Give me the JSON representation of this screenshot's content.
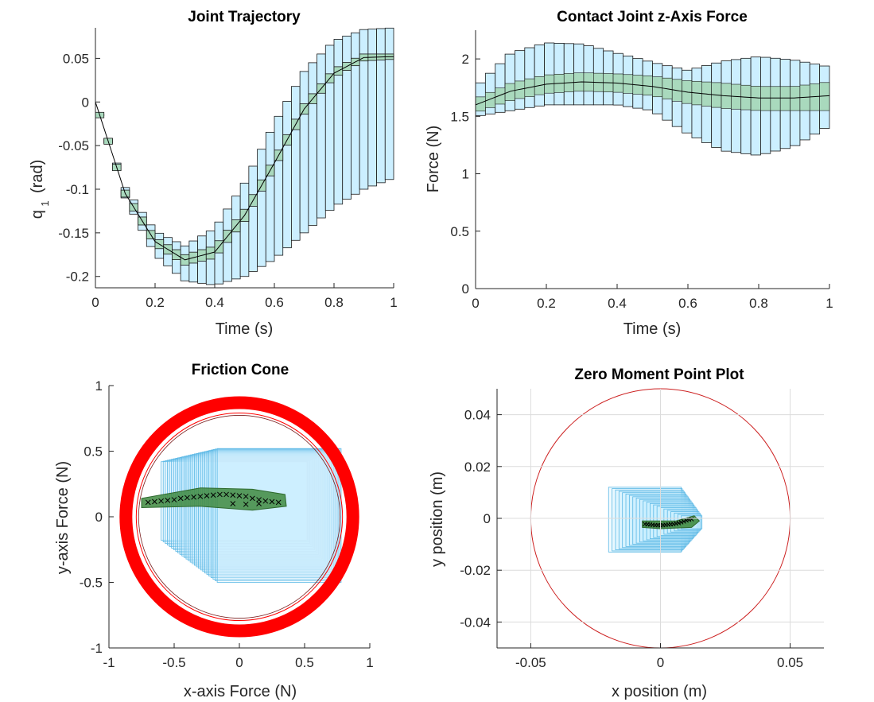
{
  "colors": {
    "bound_box": "#ccefff",
    "bound_edge": "#1a1a1a",
    "inner_box": "#a9d9bd",
    "cone_box_edge": "#5bb8e5",
    "cone_ring": "#ff0000",
    "zmp_ring": "#cc1f1f",
    "mean_fill": "#3f8a3f",
    "marker": "#000000"
  },
  "chart_data": [
    {
      "id": "joint",
      "type": "line",
      "title": "Joint Trajectory",
      "xlabel": "Time (s)",
      "ylabel": "q",
      "ylabel_sub": "1",
      "ylabel_unit": "(rad)",
      "xlim": [
        0,
        1
      ],
      "ylim": [
        -0.213,
        0.085
      ],
      "xticks": [
        0,
        0.2,
        0.4,
        0.6,
        0.8,
        1
      ],
      "xtick_labels": [
        "0",
        "0.2",
        "0.4",
        "0.6",
        "0.8",
        "1"
      ],
      "yticks": [
        -0.2,
        -0.15,
        -0.1,
        -0.05,
        0,
        0.05
      ],
      "ytick_labels": [
        "-0.2",
        "-0.15",
        "-0.1",
        "-0.05",
        "0",
        "0.05"
      ],
      "grid": false,
      "x": [
        0,
        0.1,
        0.2,
        0.3,
        0.4,
        0.5,
        0.6,
        0.7,
        0.8,
        0.9,
        1.0
      ],
      "mean": [
        0,
        -0.105,
        -0.16,
        -0.181,
        -0.172,
        -0.13,
        -0.07,
        -0.008,
        0.033,
        0.051,
        0.052
      ],
      "inner_halfwidth": [
        0.003,
        0.004,
        0.005,
        0.006,
        0.007,
        0.007,
        0.006,
        0.006,
        0.005,
        0.004,
        0.003
      ],
      "outer_halfwidth": [
        0.003,
        0.008,
        0.012,
        0.02,
        0.03,
        0.04,
        0.05,
        0.06,
        0.07,
        0.08,
        0.085
      ],
      "outer_upper": [
        0,
        -0.098,
        -0.148,
        -0.165,
        -0.145,
        -0.093,
        -0.025,
        0.035,
        0.07,
        0.083,
        0.085
      ],
      "outer_lower": [
        0,
        -0.11,
        -0.175,
        -0.205,
        -0.21,
        -0.2,
        -0.18,
        -0.15,
        -0.12,
        -0.1,
        -0.087
      ]
    },
    {
      "id": "force",
      "type": "line",
      "title": "Contact Joint z-Axis Force",
      "xlabel": "Time (s)",
      "ylabel": "Force (N)",
      "xlim": [
        0,
        1
      ],
      "ylim": [
        0,
        2.25
      ],
      "xticks": [
        0,
        0.2,
        0.4,
        0.6,
        0.8,
        1
      ],
      "xtick_labels": [
        "0",
        "0.2",
        "0.4",
        "0.6",
        "0.8",
        "1"
      ],
      "yticks": [
        0,
        0.5,
        1,
        1.5,
        2
      ],
      "ytick_labels": [
        "0",
        "0.5",
        "1",
        "1.5",
        "2"
      ],
      "grid": false,
      "x": [
        0,
        0.1,
        0.2,
        0.3,
        0.4,
        0.5,
        0.6,
        0.7,
        0.8,
        0.9,
        1.0
      ],
      "mean": [
        1.6,
        1.72,
        1.78,
        1.8,
        1.79,
        1.76,
        1.71,
        1.68,
        1.66,
        1.66,
        1.68
      ],
      "inner_upper": [
        1.65,
        1.79,
        1.86,
        1.88,
        1.87,
        1.85,
        1.81,
        1.79,
        1.76,
        1.76,
        1.8
      ],
      "inner_lower": [
        1.53,
        1.64,
        1.7,
        1.72,
        1.71,
        1.68,
        1.61,
        1.57,
        1.55,
        1.55,
        1.55
      ],
      "outer_upper": [
        1.75,
        2.05,
        2.14,
        2.13,
        2.05,
        1.97,
        1.9,
        1.98,
        2.02,
        1.99,
        1.93
      ],
      "outer_lower": [
        1.5,
        1.55,
        1.6,
        1.6,
        1.6,
        1.55,
        1.35,
        1.2,
        1.16,
        1.24,
        1.42
      ]
    },
    {
      "id": "cone",
      "type": "scatter",
      "title": "Friction Cone",
      "xlabel": "x-axis Force (N)",
      "ylabel": "y-axis Force (N)",
      "xlim": [
        -1,
        1
      ],
      "ylim": [
        -1,
        1
      ],
      "xticks": [
        -1,
        -0.5,
        0,
        0.5,
        1
      ],
      "xtick_labels": [
        "-1",
        "-0.5",
        "0",
        "0.5",
        "1"
      ],
      "yticks": [
        -1,
        -0.5,
        0,
        0.5,
        1
      ],
      "ytick_labels": [
        "-1",
        "-0.5",
        "0",
        "0.5",
        "1"
      ],
      "grid": false,
      "ring_radius": 0.87,
      "points_x": [
        -0.7,
        -0.65,
        -0.6,
        -0.55,
        -0.5,
        -0.45,
        -0.4,
        -0.35,
        -0.3,
        -0.25,
        -0.2,
        -0.15,
        -0.1,
        -0.05,
        0,
        0.05,
        0.1,
        0.15,
        0.2,
        0.25,
        0.3,
        -0.05,
        0.05,
        0.15
      ],
      "points_y": [
        0.11,
        0.115,
        0.12,
        0.125,
        0.13,
        0.14,
        0.145,
        0.15,
        0.155,
        0.16,
        0.165,
        0.17,
        0.17,
        0.165,
        0.16,
        0.155,
        0.14,
        0.13,
        0.12,
        0.115,
        0.11,
        0.1,
        0.095,
        0.1
      ]
    },
    {
      "id": "zmp",
      "type": "scatter",
      "title": "Zero Moment Point Plot",
      "xlabel": "x position (m)",
      "ylabel": "y position (m)",
      "xlim": [
        -0.063,
        0.063
      ],
      "ylim": [
        -0.05,
        0.05
      ],
      "xticks": [
        -0.05,
        0,
        0.05
      ],
      "xtick_labels": [
        "-0.05",
        "0",
        "0.05"
      ],
      "yticks": [
        -0.04,
        -0.02,
        0,
        0.02,
        0.04
      ],
      "ytick_labels": [
        "-0.04",
        "-0.02",
        "0",
        "0.02",
        "0.04"
      ],
      "grid": true,
      "ring_radius": 0.05,
      "points_x": [
        -0.006,
        -0.005,
        -0.004,
        -0.003,
        -0.002,
        -0.001,
        0,
        0.001,
        0.002,
        0.003,
        0.004,
        0.005,
        0.006,
        0.007,
        0.008,
        0.009,
        0.01,
        0.011,
        0.012
      ],
      "points_y": [
        -0.0022,
        -0.0023,
        -0.0024,
        -0.0025,
        -0.0026,
        -0.0026,
        -0.0027,
        -0.0026,
        -0.0025,
        -0.0024,
        -0.0023,
        -0.0022,
        -0.002,
        -0.0018,
        -0.0015,
        -0.0012,
        -0.0008,
        -0.0005,
        -0.0003
      ]
    }
  ]
}
